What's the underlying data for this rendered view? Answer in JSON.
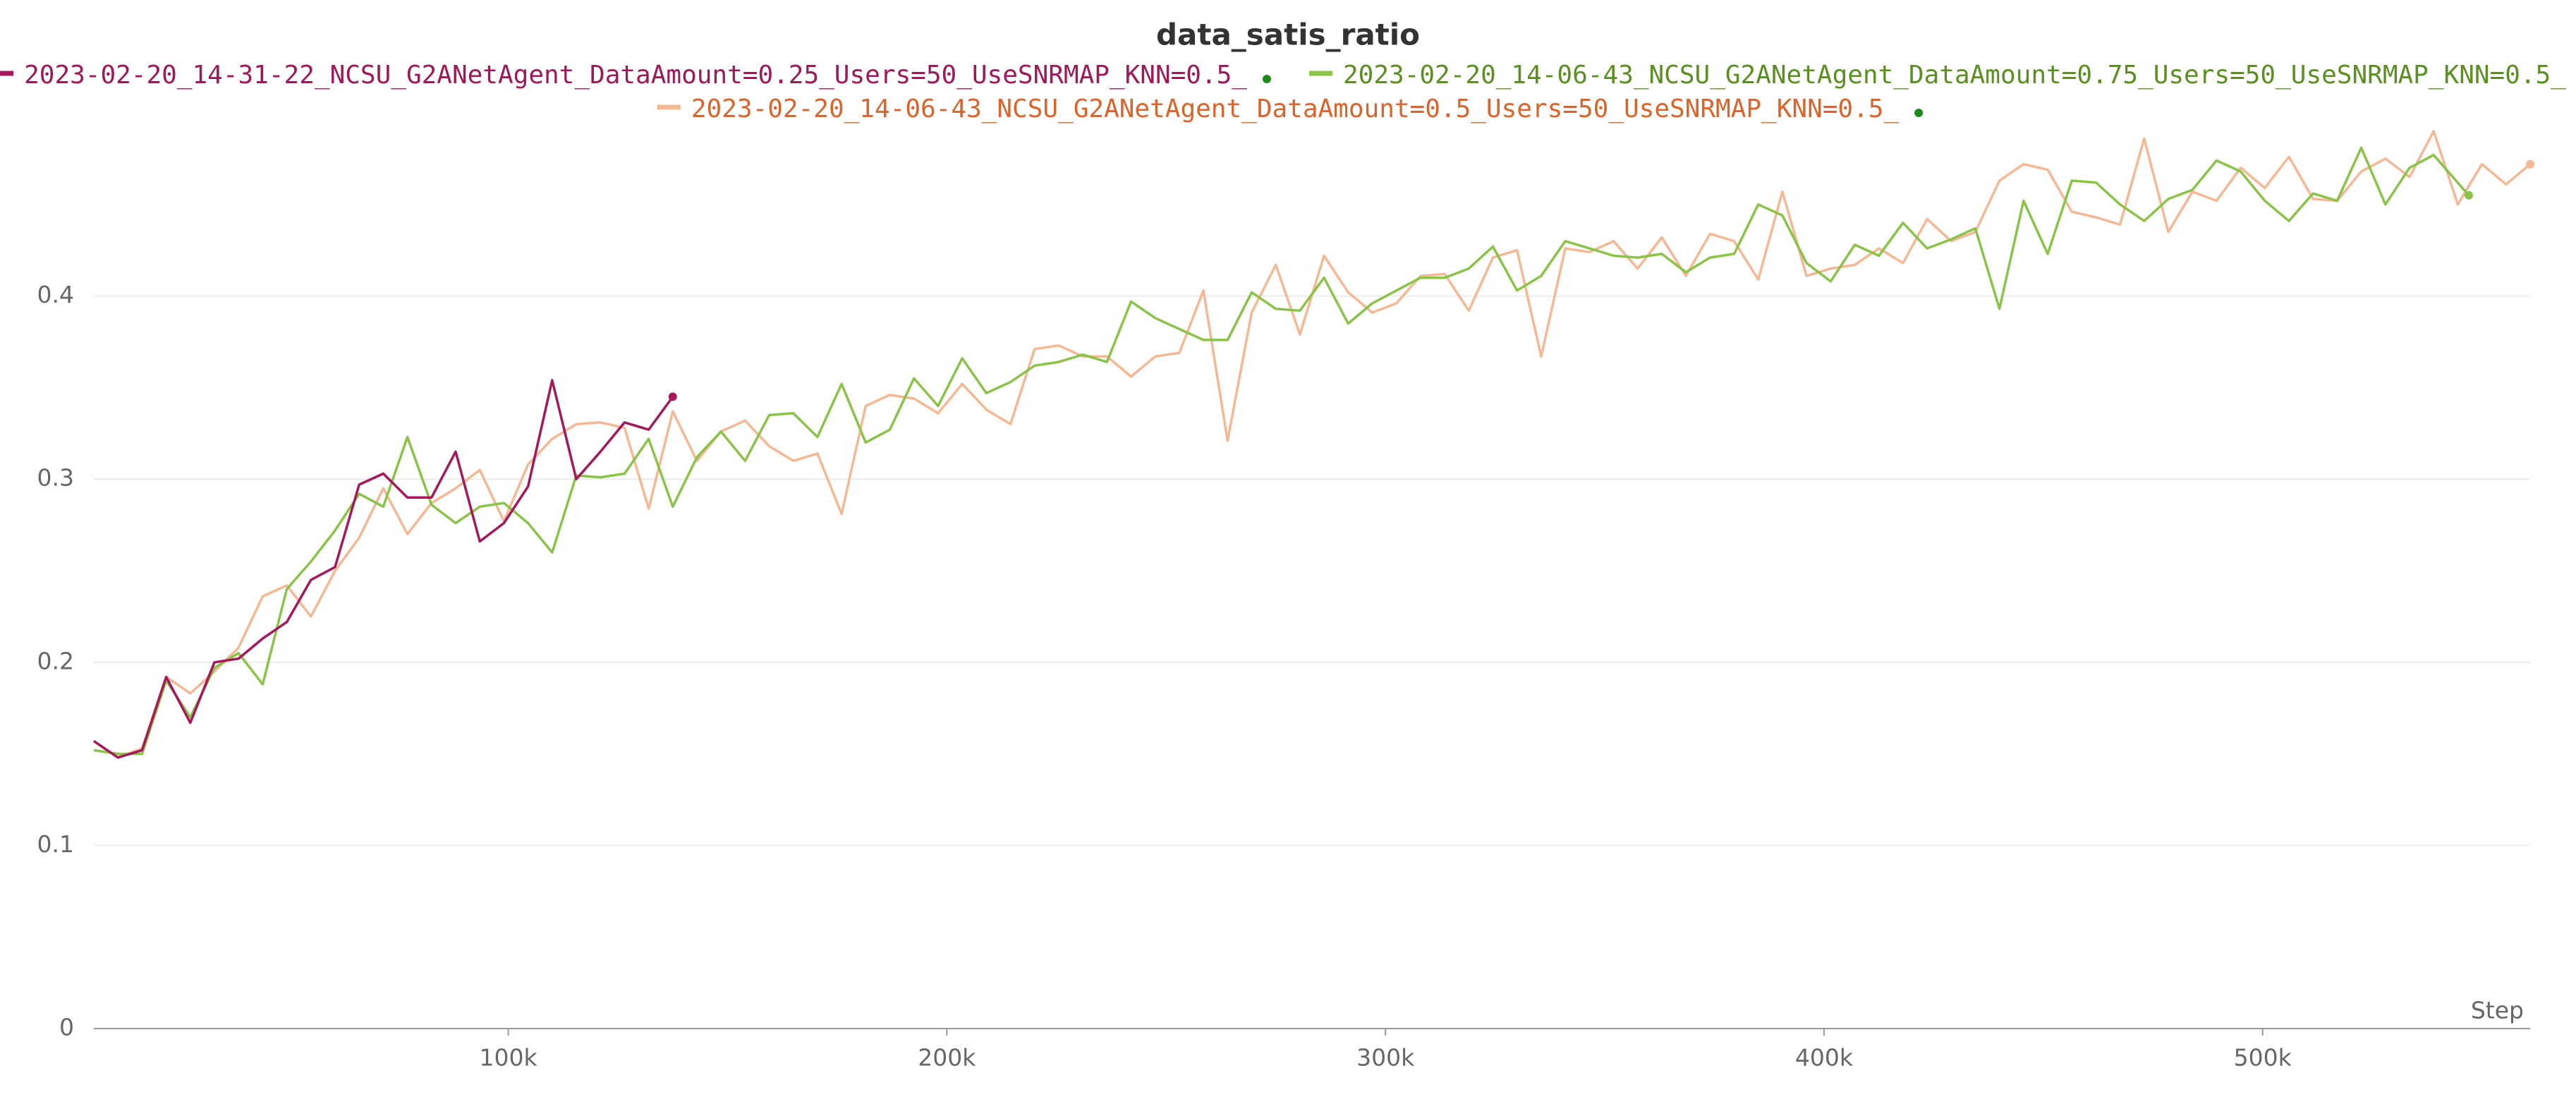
{
  "chart_data": {
    "type": "line",
    "title": "data_satis_ratio",
    "xlabel": "Step",
    "grid": true,
    "legend": "top",
    "xlim": [
      5500,
      561000
    ],
    "ylim": [
      0,
      0.49
    ],
    "xticks": [
      {
        "value": 100000,
        "label": "100k"
      },
      {
        "value": 200000,
        "label": "200k"
      },
      {
        "value": 300000,
        "label": "300k"
      },
      {
        "value": 400000,
        "label": "400k"
      },
      {
        "value": 500000,
        "label": "500k"
      }
    ],
    "yticks": [
      0,
      0.1,
      0.2,
      0.3,
      0.4
    ],
    "series": [
      {
        "name": "2023-02-20_14-31-22_NCSU_G2ANetAgent_DataAmount=0.25_Users=50_UseSNRMAP_KNN=0.5_",
        "color": "#a3195b",
        "x": [
          5500,
          11000,
          16500,
          22000,
          27500,
          33000,
          38500,
          44000,
          49500,
          55000,
          60500,
          66000,
          71500,
          77000,
          82500,
          88000,
          93500,
          99000,
          104500,
          110000,
          115500,
          121000,
          126500,
          132000,
          137500
        ],
        "values": [
          0.157,
          0.148,
          0.152,
          0.192,
          0.167,
          0.2,
          0.202,
          0.213,
          0.222,
          0.245,
          0.252,
          0.297,
          0.303,
          0.29,
          0.29,
          0.315,
          0.266,
          0.276,
          0.296,
          0.354,
          0.3,
          0.315,
          0.331,
          0.327,
          0.345
        ]
      },
      {
        "name": "2023-02-20_14-06-43_NCSU_G2ANetAgent_DataAmount=0.75_Users=50_UseSNRMAP_KNN=0.5_",
        "color": "#8bc34a",
        "x": [
          5500,
          11000,
          16500,
          22000,
          27500,
          33000,
          38500,
          44000,
          49500,
          55000,
          60500,
          66000,
          71500,
          77000,
          82500,
          88000,
          93500,
          99000,
          104500,
          110000,
          115500,
          121000,
          126500,
          132000,
          137500,
          143000,
          148500,
          154000,
          159500,
          165000,
          170500,
          176000,
          181500,
          187000,
          192500,
          198000,
          203500,
          209000,
          214500,
          220000,
          225500,
          231000,
          236500,
          242000,
          247500,
          253000,
          258500,
          264000,
          269500,
          275000,
          280500,
          286000,
          291500,
          297000,
          302500,
          308000,
          313500,
          319000,
          324500,
          330000,
          335500,
          341000,
          346500,
          352000,
          357500,
          363000,
          368500,
          374000,
          379500,
          385000,
          390500,
          396000,
          401500,
          407000,
          412500,
          418000,
          423500,
          429000,
          434500,
          440000,
          445500,
          451000,
          456500,
          462000,
          467500,
          473000,
          478500,
          484000,
          489500,
          495000,
          500500,
          506000,
          511500,
          517000,
          522500,
          528000,
          533500,
          539000,
          547000
        ],
        "values": [
          0.152,
          0.15,
          0.15,
          0.19,
          0.17,
          0.197,
          0.205,
          0.188,
          0.24,
          0.255,
          0.272,
          0.292,
          0.285,
          0.323,
          0.286,
          0.276,
          0.285,
          0.287,
          0.276,
          0.26,
          0.302,
          0.301,
          0.303,
          0.322,
          0.285,
          0.312,
          0.326,
          0.31,
          0.335,
          0.336,
          0.323,
          0.352,
          0.32,
          0.327,
          0.355,
          0.34,
          0.366,
          0.347,
          0.353,
          0.362,
          0.364,
          0.368,
          0.364,
          0.397,
          0.388,
          0.382,
          0.376,
          0.376,
          0.402,
          0.393,
          0.392,
          0.41,
          0.385,
          0.396,
          0.403,
          0.41,
          0.41,
          0.415,
          0.427,
          0.403,
          0.411,
          0.43,
          0.426,
          0.422,
          0.421,
          0.423,
          0.413,
          0.421,
          0.423,
          0.45,
          0.444,
          0.418,
          0.408,
          0.428,
          0.422,
          0.44,
          0.426,
          0.431,
          0.437,
          0.393,
          0.452,
          0.423,
          0.463,
          0.462,
          0.45,
          0.441,
          0.453,
          0.458,
          0.474,
          0.468,
          0.452,
          0.441,
          0.456,
          0.452,
          0.481,
          0.45,
          0.47,
          0.477,
          0.455
        ]
      },
      {
        "name": "2023-02-20_14-06-43_NCSU_G2ANetAgent_DataAmount=0.5_Users=50_UseSNRMAP_KNN=0.5_",
        "color": "#f4b895",
        "x": [
          5500,
          11000,
          16500,
          22000,
          27500,
          33000,
          38500,
          44000,
          49500,
          55000,
          60500,
          66000,
          71500,
          77000,
          82500,
          88000,
          93500,
          99000,
          104500,
          110000,
          115500,
          121000,
          126500,
          132000,
          137500,
          143000,
          148500,
          154000,
          159500,
          165000,
          170500,
          176000,
          181500,
          187000,
          192500,
          198000,
          203500,
          209000,
          214500,
          220000,
          225500,
          231000,
          236500,
          242000,
          247500,
          253000,
          258500,
          264000,
          269500,
          275000,
          280500,
          286000,
          291500,
          297000,
          302500,
          308000,
          313500,
          319000,
          324500,
          330000,
          335500,
          341000,
          346500,
          352000,
          357500,
          363000,
          368500,
          374000,
          379500,
          385000,
          390500,
          396000,
          401500,
          407000,
          412500,
          418000,
          423500,
          429000,
          434500,
          440000,
          445500,
          451000,
          456500,
          462000,
          467500,
          473000,
          478500,
          484000,
          489500,
          495000,
          500500,
          506000,
          511500,
          517000,
          522500,
          528000,
          533500,
          539000,
          544500,
          550000,
          555500,
          561000
        ],
        "values": [
          0.157,
          0.148,
          0.153,
          0.192,
          0.183,
          0.195,
          0.208,
          0.236,
          0.242,
          0.225,
          0.25,
          0.268,
          0.295,
          0.27,
          0.287,
          0.295,
          0.305,
          0.277,
          0.308,
          0.322,
          0.33,
          0.331,
          0.328,
          0.284,
          0.337,
          0.31,
          0.326,
          0.332,
          0.318,
          0.31,
          0.314,
          0.281,
          0.34,
          0.346,
          0.344,
          0.336,
          0.352,
          0.338,
          0.33,
          0.371,
          0.373,
          0.367,
          0.367,
          0.356,
          0.367,
          0.369,
          0.403,
          0.321,
          0.391,
          0.417,
          0.379,
          0.422,
          0.402,
          0.391,
          0.396,
          0.411,
          0.412,
          0.392,
          0.421,
          0.425,
          0.367,
          0.426,
          0.424,
          0.43,
          0.415,
          0.432,
          0.411,
          0.434,
          0.43,
          0.409,
          0.457,
          0.411,
          0.415,
          0.417,
          0.426,
          0.418,
          0.442,
          0.43,
          0.435,
          0.463,
          0.472,
          0.469,
          0.446,
          0.443,
          0.439,
          0.486,
          0.435,
          0.457,
          0.452,
          0.47,
          0.459,
          0.476,
          0.453,
          0.452,
          0.468,
          0.475,
          0.465,
          0.49,
          0.45,
          0.472,
          0.461,
          0.472
        ]
      }
    ]
  }
}
